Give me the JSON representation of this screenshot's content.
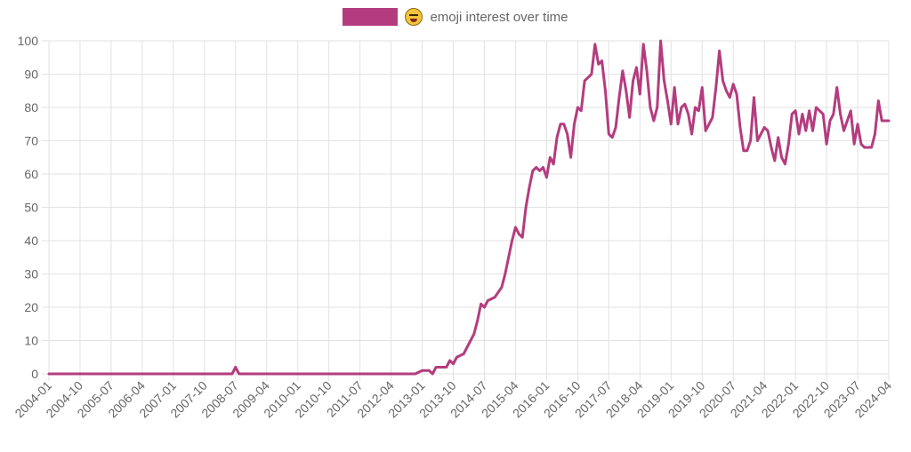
{
  "chart_data": {
    "type": "line",
    "legend": {
      "label": "emoji interest over time",
      "icon": "grinning-squinting-face-icon",
      "placement": "top-center"
    },
    "series": [
      {
        "name": "emoji interest over time",
        "color": "#b43c7e",
        "points": [
          [
            "2004-01",
            0
          ],
          [
            "2008-06",
            0
          ],
          [
            "2008-07",
            2
          ],
          [
            "2008-08",
            0
          ],
          [
            "2012-11",
            0
          ],
          [
            "2013-01",
            1
          ],
          [
            "2013-03",
            1
          ],
          [
            "2013-04",
            0
          ],
          [
            "2013-05",
            2
          ],
          [
            "2013-08",
            2
          ],
          [
            "2013-09",
            4
          ],
          [
            "2013-10",
            3
          ],
          [
            "2013-11",
            5
          ],
          [
            "2014-01",
            6
          ],
          [
            "2014-03",
            10
          ],
          [
            "2014-04",
            12
          ],
          [
            "2014-05",
            16
          ],
          [
            "2014-06",
            21
          ],
          [
            "2014-07",
            20
          ],
          [
            "2014-08",
            22
          ],
          [
            "2014-10",
            23
          ],
          [
            "2014-12",
            26
          ],
          [
            "2015-01",
            30
          ],
          [
            "2015-03",
            40
          ],
          [
            "2015-04",
            44
          ],
          [
            "2015-05",
            42
          ],
          [
            "2015-06",
            41
          ],
          [
            "2015-07",
            50
          ],
          [
            "2015-08",
            56
          ],
          [
            "2015-09",
            61
          ],
          [
            "2015-10",
            62
          ],
          [
            "2015-11",
            61
          ],
          [
            "2015-12",
            62
          ],
          [
            "2016-01",
            59
          ],
          [
            "2016-02",
            65
          ],
          [
            "2016-03",
            63
          ],
          [
            "2016-04",
            71
          ],
          [
            "2016-05",
            75
          ],
          [
            "2016-06",
            75
          ],
          [
            "2016-07",
            72
          ],
          [
            "2016-08",
            65
          ],
          [
            "2016-09",
            75
          ],
          [
            "2016-10",
            80
          ],
          [
            "2016-11",
            79
          ],
          [
            "2016-12",
            88
          ],
          [
            "2017-01",
            89
          ],
          [
            "2017-02",
            90
          ],
          [
            "2017-03",
            99
          ],
          [
            "2017-04",
            93
          ],
          [
            "2017-05",
            94
          ],
          [
            "2017-06",
            85
          ],
          [
            "2017-07",
            72
          ],
          [
            "2017-08",
            71
          ],
          [
            "2017-09",
            74
          ],
          [
            "2017-10",
            83
          ],
          [
            "2017-11",
            91
          ],
          [
            "2017-12",
            85
          ],
          [
            "2018-01",
            77
          ],
          [
            "2018-02",
            88
          ],
          [
            "2018-03",
            92
          ],
          [
            "2018-04",
            84
          ],
          [
            "2018-05",
            99
          ],
          [
            "2018-06",
            91
          ],
          [
            "2018-07",
            80
          ],
          [
            "2018-08",
            76
          ],
          [
            "2018-09",
            80
          ],
          [
            "2018-10",
            100
          ],
          [
            "2018-11",
            88
          ],
          [
            "2018-12",
            82
          ],
          [
            "2019-01",
            75
          ],
          [
            "2019-02",
            86
          ],
          [
            "2019-03",
            75
          ],
          [
            "2019-04",
            80
          ],
          [
            "2019-05",
            81
          ],
          [
            "2019-06",
            78
          ],
          [
            "2019-07",
            72
          ],
          [
            "2019-08",
            80
          ],
          [
            "2019-09",
            79
          ],
          [
            "2019-10",
            86
          ],
          [
            "2019-11",
            73
          ],
          [
            "2019-12",
            75
          ],
          [
            "2020-01",
            77
          ],
          [
            "2020-02",
            86
          ],
          [
            "2020-03",
            97
          ],
          [
            "2020-04",
            88
          ],
          [
            "2020-05",
            85
          ],
          [
            "2020-06",
            83
          ],
          [
            "2020-07",
            87
          ],
          [
            "2020-08",
            84
          ],
          [
            "2020-09",
            74
          ],
          [
            "2020-10",
            67
          ],
          [
            "2020-11",
            67
          ],
          [
            "2020-12",
            70
          ],
          [
            "2021-01",
            83
          ],
          [
            "2021-02",
            70
          ],
          [
            "2021-03",
            72
          ],
          [
            "2021-04",
            74
          ],
          [
            "2021-05",
            73
          ],
          [
            "2021-06",
            68
          ],
          [
            "2021-07",
            64
          ],
          [
            "2021-08",
            71
          ],
          [
            "2021-09",
            65
          ],
          [
            "2021-10",
            63
          ],
          [
            "2021-11",
            69
          ],
          [
            "2021-12",
            78
          ],
          [
            "2022-01",
            79
          ],
          [
            "2022-02",
            72
          ],
          [
            "2022-03",
            78
          ],
          [
            "2022-04",
            73
          ],
          [
            "2022-05",
            79
          ],
          [
            "2022-06",
            73
          ],
          [
            "2022-07",
            80
          ],
          [
            "2022-08",
            79
          ],
          [
            "2022-09",
            78
          ],
          [
            "2022-10",
            69
          ],
          [
            "2022-11",
            76
          ],
          [
            "2022-12",
            78
          ],
          [
            "2023-01",
            86
          ],
          [
            "2023-02",
            78
          ],
          [
            "2023-03",
            73
          ],
          [
            "2023-04",
            76
          ],
          [
            "2023-05",
            79
          ],
          [
            "2023-06",
            69
          ],
          [
            "2023-07",
            75
          ],
          [
            "2023-08",
            69
          ],
          [
            "2023-09",
            68
          ],
          [
            "2023-10",
            68
          ],
          [
            "2023-11",
            68
          ],
          [
            "2023-12",
            72
          ],
          [
            "2024-01",
            82
          ],
          [
            "2024-02",
            76
          ],
          [
            "2024-03",
            76
          ],
          [
            "2024-04",
            76
          ]
        ]
      }
    ],
    "x_tick_labels": [
      "2004-01",
      "2004-10",
      "2005-07",
      "2006-04",
      "2007-01",
      "2007-10",
      "2008-07",
      "2009-04",
      "2010-01",
      "2010-10",
      "2011-07",
      "2012-04",
      "2013-01",
      "2013-10",
      "2014-07",
      "2015-04",
      "2016-01",
      "2016-10",
      "2017-07",
      "2018-04",
      "2019-01",
      "2019-10",
      "2020-07",
      "2021-04",
      "2022-01",
      "2022-10",
      "2023-07",
      "2024-04"
    ],
    "y_tick_labels": [
      "0",
      "10",
      "20",
      "30",
      "40",
      "50",
      "60",
      "70",
      "80",
      "90",
      "100"
    ],
    "ylim": [
      0,
      100
    ],
    "xlim": [
      "2004-01",
      "2024-04"
    ],
    "grid": true
  }
}
